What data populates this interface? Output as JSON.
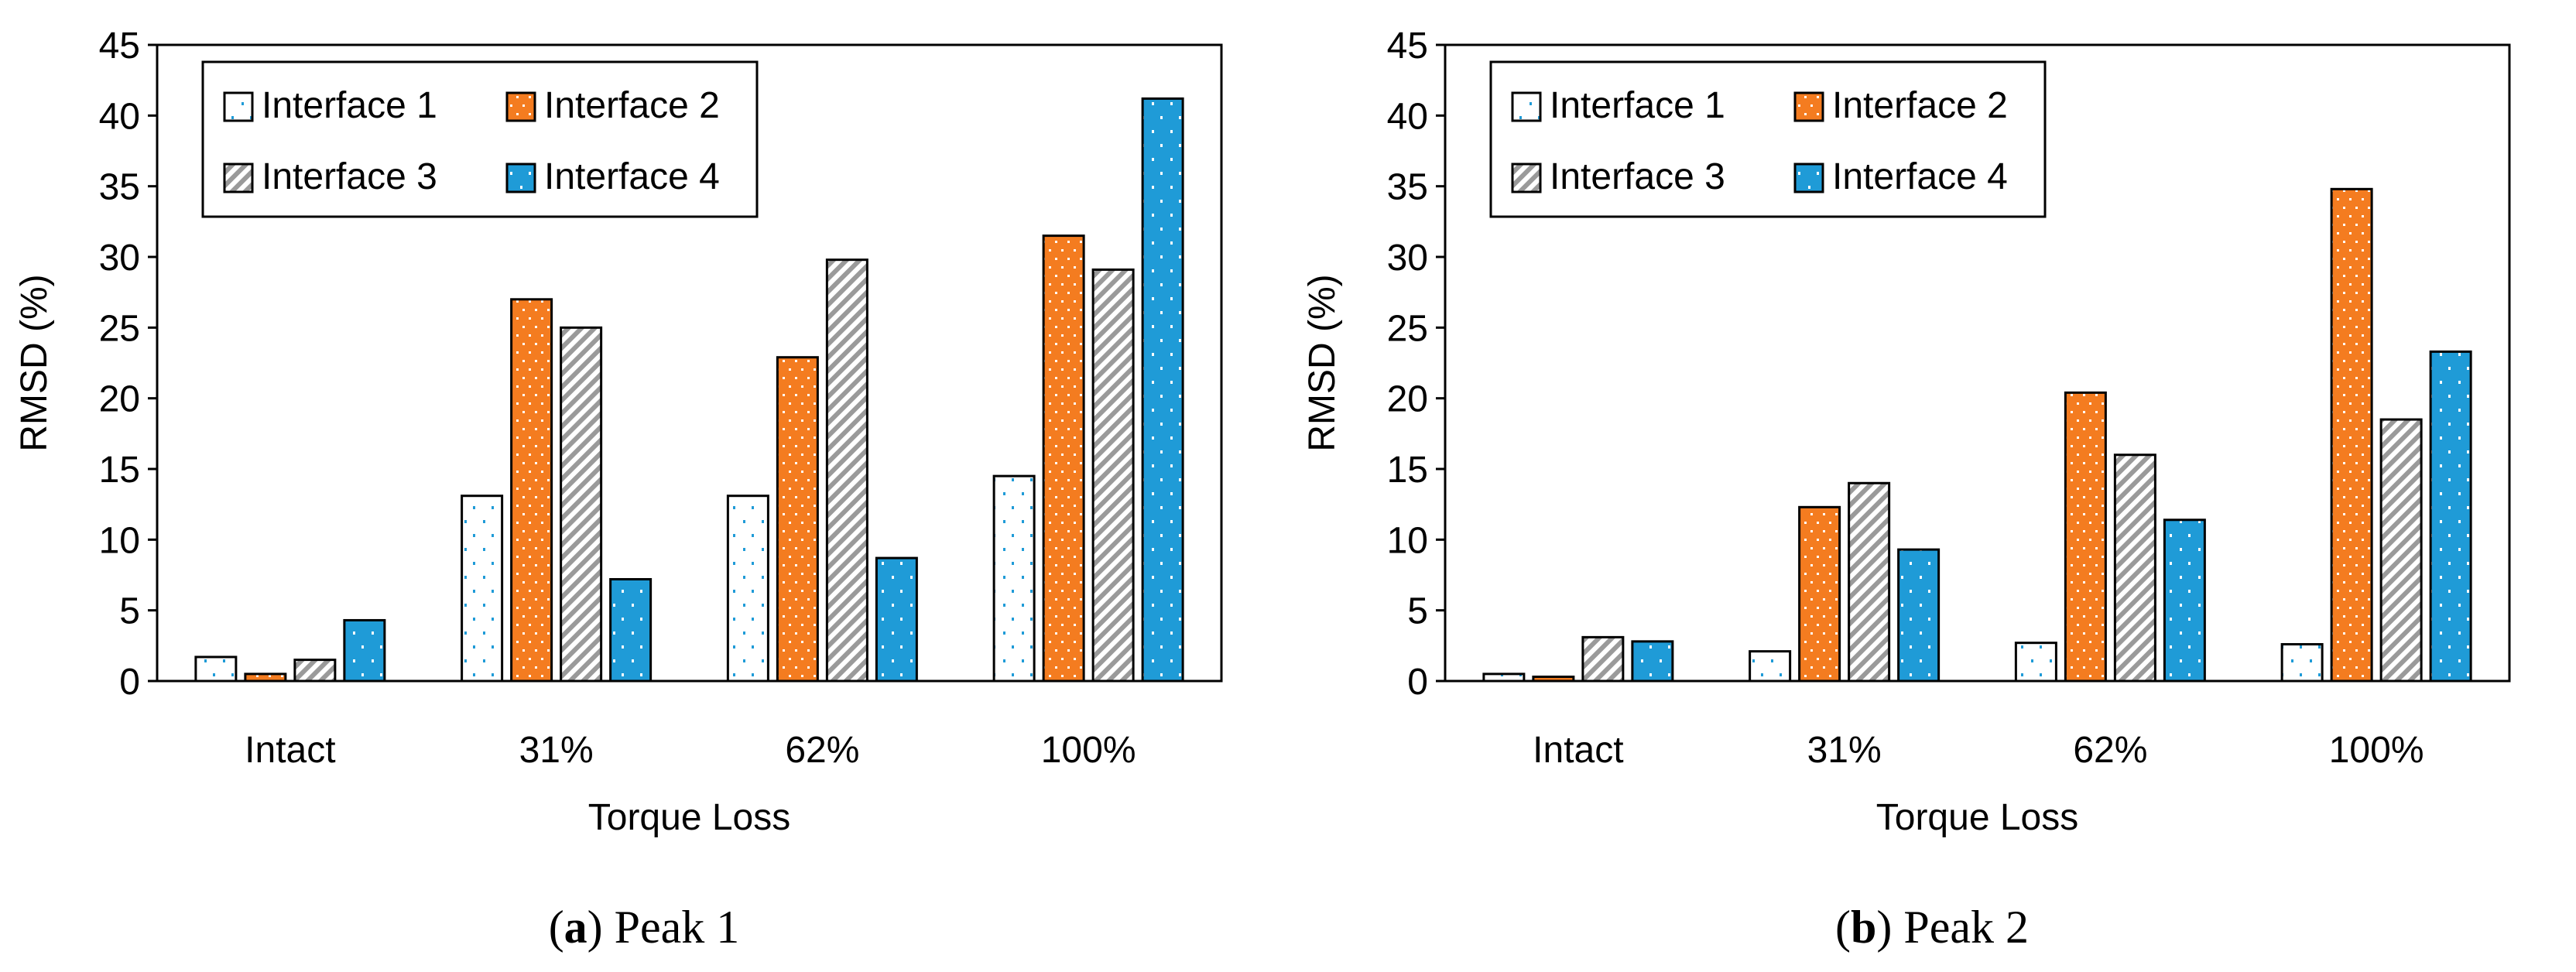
{
  "colors": {
    "interface1_fill": "#ffffff",
    "interface1_dots": "#1f9bd7",
    "interface2_fill": "#f47c20",
    "interface2_dots": "#ffffff",
    "interface3_fill": "#ffffff",
    "interface3_stripes": "#9a9a9a",
    "interface4_fill": "#1f9bd7",
    "interface4_dots": "#ffffff",
    "outline": "#000000"
  },
  "chart_data": [
    {
      "type": "bar",
      "panel_letter": "a",
      "caption_text": "Peak 1",
      "xlabel": "Torque Loss",
      "ylabel": "RMSD (%)",
      "ylim": [
        0,
        45
      ],
      "yticks": [
        "0",
        "5",
        "10",
        "15",
        "20",
        "25",
        "30",
        "35",
        "40",
        "45"
      ],
      "categories": [
        "Intact",
        "31%",
        "62%",
        "100%"
      ],
      "legend_position": "top-left",
      "series": [
        {
          "name": "Interface 1",
          "values": [
            1.7,
            13.1,
            13.1,
            14.5
          ]
        },
        {
          "name": "Interface 2",
          "values": [
            0.5,
            27.0,
            22.9,
            31.5
          ]
        },
        {
          "name": "Interface 3",
          "values": [
            1.5,
            25.0,
            29.8,
            29.1
          ]
        },
        {
          "name": "Interface 4",
          "values": [
            4.3,
            7.2,
            8.7,
            41.2
          ]
        }
      ]
    },
    {
      "type": "bar",
      "panel_letter": "b",
      "caption_text": "Peak 2",
      "xlabel": "Torque Loss",
      "ylabel": "RMSD (%)",
      "ylim": [
        0,
        45
      ],
      "yticks": [
        "0",
        "5",
        "10",
        "15",
        "20",
        "25",
        "30",
        "35",
        "40",
        "45"
      ],
      "categories": [
        "Intact",
        "31%",
        "62%",
        "100%"
      ],
      "legend_position": "top-left",
      "series": [
        {
          "name": "Interface 1",
          "values": [
            0.5,
            2.1,
            2.7,
            2.6
          ]
        },
        {
          "name": "Interface 2",
          "values": [
            0.3,
            12.3,
            20.4,
            34.8
          ]
        },
        {
          "name": "Interface 3",
          "values": [
            3.1,
            14.0,
            16.0,
            18.5
          ]
        },
        {
          "name": "Interface 4",
          "values": [
            2.8,
            9.3,
            11.4,
            23.3
          ]
        }
      ]
    }
  ]
}
